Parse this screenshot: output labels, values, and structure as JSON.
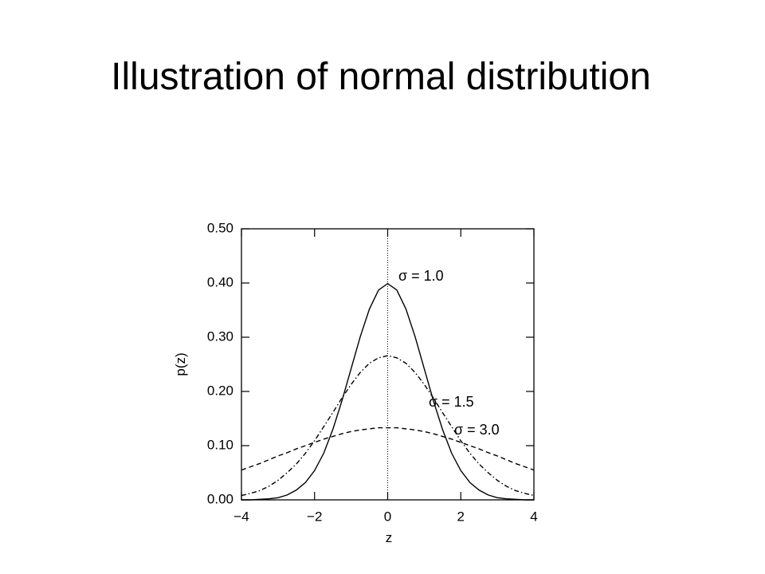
{
  "chart_data": {
    "type": "line",
    "title": "Illustration of normal distribution",
    "x_label": "z",
    "y_label": "p(z)",
    "x": [
      -4,
      -3.75,
      -3.5,
      -3.25,
      -3,
      -2.75,
      -2.5,
      -2.25,
      -2,
      -1.75,
      -1.5,
      -1.25,
      -1,
      -0.75,
      -0.5,
      -0.25,
      0,
      0.25,
      0.5,
      0.75,
      1,
      1.25,
      1.5,
      1.75,
      2,
      2.25,
      2.5,
      2.75,
      3,
      3.25,
      3.5,
      3.75,
      4
    ],
    "series": [
      {
        "name": "σ = 1.0",
        "color": "#000000",
        "line_style": "solid",
        "values": [
          0.0,
          0.0,
          0.001,
          0.002,
          0.004,
          0.009,
          0.018,
          0.032,
          0.054,
          0.086,
          0.13,
          0.183,
          0.242,
          0.301,
          0.352,
          0.387,
          0.399,
          0.387,
          0.352,
          0.301,
          0.242,
          0.183,
          0.13,
          0.086,
          0.054,
          0.032,
          0.018,
          0.009,
          0.004,
          0.002,
          0.001,
          0.0,
          0.0
        ]
      },
      {
        "name": "σ = 1.5",
        "color": "#000000",
        "line_style": "dashdot",
        "values": [
          0.008,
          0.012,
          0.017,
          0.025,
          0.036,
          0.05,
          0.066,
          0.086,
          0.109,
          0.135,
          0.161,
          0.188,
          0.213,
          0.235,
          0.252,
          0.262,
          0.266,
          0.262,
          0.252,
          0.235,
          0.213,
          0.188,
          0.161,
          0.135,
          0.109,
          0.086,
          0.066,
          0.05,
          0.036,
          0.025,
          0.017,
          0.012,
          0.008
        ]
      },
      {
        "name": "σ = 3.0",
        "color": "#000000",
        "line_style": "dashed",
        "values": [
          0.055,
          0.061,
          0.067,
          0.074,
          0.081,
          0.087,
          0.094,
          0.1,
          0.106,
          0.112,
          0.117,
          0.122,
          0.126,
          0.129,
          0.131,
          0.133,
          0.133,
          0.133,
          0.131,
          0.129,
          0.126,
          0.122,
          0.117,
          0.112,
          0.106,
          0.1,
          0.094,
          0.087,
          0.081,
          0.074,
          0.067,
          0.061,
          0.055
        ]
      }
    ],
    "xlim": [
      -4,
      4
    ],
    "xticks": [
      {
        "value": -4,
        "label": "−4"
      },
      {
        "value": -2,
        "label": "−2"
      },
      0,
      2,
      4
    ],
    "ylim": [
      0,
      0.5
    ],
    "yticks": [
      {
        "value": 0,
        "label": "0.00"
      },
      {
        "value": 0.1,
        "label": "0.10"
      },
      {
        "value": 0.2,
        "label": "0.20"
      },
      {
        "value": 0.3,
        "label": "0.30"
      },
      {
        "value": 0.4,
        "label": "0.40"
      },
      {
        "value": 0.5,
        "label": "0.50"
      }
    ],
    "vline_x": 0
  }
}
